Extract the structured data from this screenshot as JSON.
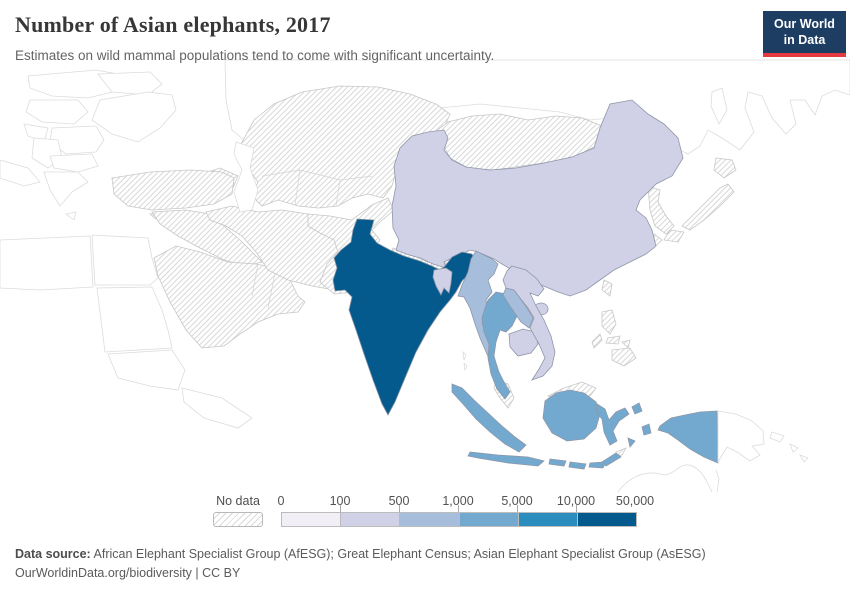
{
  "header": {
    "title": "Number of Asian elephants, 2017",
    "subtitle": "Estimates on wild mammal populations tend to come with significant uncertainty."
  },
  "logo": {
    "line1": "Our World",
    "line2": "in Data",
    "bg_color": "#1d3d63",
    "accent_color": "#e5383f"
  },
  "legend": {
    "no_data_label": "No data",
    "tick_labels": [
      "0",
      "100",
      "500",
      "1,000",
      "5,000",
      "10,000",
      "50,000"
    ],
    "bins": [
      {
        "range": "0-100",
        "color": "#f1eef6"
      },
      {
        "range": "100-500",
        "color": "#d0d1e6"
      },
      {
        "range": "500-1,000",
        "color": "#a6bddb"
      },
      {
        "range": "1,000-5,000",
        "color": "#74a9cf"
      },
      {
        "range": "5,000-10,000",
        "color": "#2b8cbe"
      },
      {
        "range": "10,000-50,000",
        "color": "#045a8d"
      }
    ]
  },
  "footer": {
    "source_label": "Data source:",
    "source_text": " African Elephant Specialist Group (AfESG); Great Elephant Census; Asian Elephant Specialist Group (AsESG)",
    "attribution": "OurWorldinData.org/biodiversity | CC BY"
  },
  "chart_data": {
    "type": "heatmap",
    "map_projection": "choropleth map of Asia",
    "title": "Number of Asian elephants, 2017",
    "year": "2017",
    "legend_bin_edges": [
      "0",
      "100",
      "500",
      "1,000",
      "5,000",
      "10,000",
      "50,000"
    ],
    "legend_bin_colors": [
      "#f1eef6",
      "#d0d1e6",
      "#a6bddb",
      "#74a9cf",
      "#2b8cbe",
      "#045a8d"
    ],
    "countries": [
      {
        "name": "India",
        "bin": "10,000-50,000",
        "color": "#045a8d"
      },
      {
        "name": "China",
        "bin": "100-500",
        "color": "#d0d1e6"
      },
      {
        "name": "Bangladesh",
        "bin": "100-500",
        "color": "#d0d1e6"
      },
      {
        "name": "Vietnam",
        "bin": "100-500",
        "color": "#d0d1e6"
      },
      {
        "name": "Cambodia",
        "bin": "100-500",
        "color": "#d0d1e6"
      },
      {
        "name": "Myanmar",
        "bin": "500-1,000",
        "color": "#a6bddb"
      },
      {
        "name": "Laos",
        "bin": "500-1,000",
        "color": "#a6bddb"
      },
      {
        "name": "Thailand",
        "bin": "1,000-5,000",
        "color": "#74a9cf"
      },
      {
        "name": "Indonesia",
        "bin": "1,000-5,000",
        "color": "#74a9cf"
      }
    ],
    "no_data_countries": [
      "Nepal",
      "Bhutan",
      "Sri Lanka",
      "Pakistan",
      "Afghanistan",
      "Iran",
      "Iraq",
      "Syria",
      "Turkey",
      "Saudi Arabia",
      "Yemen",
      "Oman",
      "Kazakhstan",
      "Uzbekistan",
      "Turkmenistan",
      "Kyrgyzstan",
      "Tajikistan",
      "Mongolia",
      "North Korea",
      "South Korea",
      "Japan",
      "Taiwan",
      "Philippines",
      "Malaysia",
      "Timor-Leste",
      "Cyprus",
      "Caucasus states"
    ]
  }
}
